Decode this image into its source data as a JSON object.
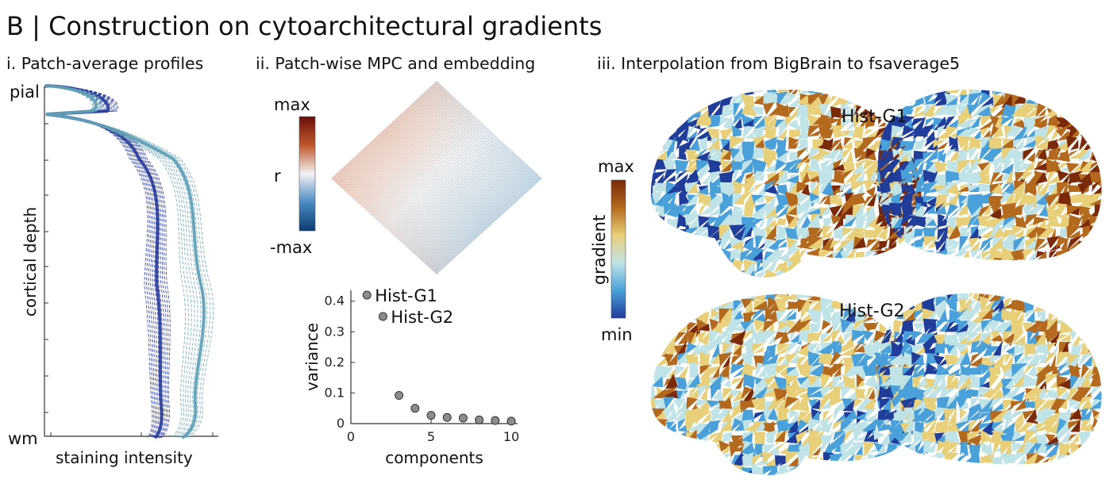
{
  "figure": {
    "title": "B | Construction on cytoarchitectural gradients"
  },
  "panel_i": {
    "title": "i. Patch-average profiles",
    "y_top_label": "pial",
    "y_bottom_label": "wm",
    "y_axis_label": "cortical depth",
    "x_axis_label": "staining intensity"
  },
  "panel_ii": {
    "title": "ii. Patch-wise MPC and embedding",
    "colorbar_max": "max",
    "colorbar_mid": "r",
    "colorbar_min": "-max",
    "colors": {
      "neg": "#0b3a72",
      "mid": "#f2f2f2",
      "pos": "#6b0e0a"
    }
  },
  "panel_iii": {
    "title": "iii. Interpolation from BigBrain to fsaverage5",
    "label_g1": "Hist-G1",
    "label_g2": "Hist-G2",
    "colorbar_max": "max",
    "colorbar_min": "min",
    "colorbar_label": "gradient",
    "colors": [
      "#1f3d99",
      "#4aa0d8",
      "#bfe3e6",
      "#e8cf7a",
      "#b36a1e",
      "#7a2a08"
    ]
  },
  "chart_data": {
    "type": "scatter",
    "xlabel": "components",
    "ylabel": "variance",
    "xlim": [
      0,
      10
    ],
    "ylim": [
      0,
      0.42
    ],
    "xticks": [
      "0",
      "5",
      "10"
    ],
    "yticks": [
      "0",
      "0.1",
      "0.2",
      "0.3",
      "0.4"
    ],
    "grid": false,
    "x": [
      1,
      2,
      3,
      4,
      5,
      6,
      7,
      8,
      9,
      10
    ],
    "y": [
      0.42,
      0.35,
      0.092,
      0.05,
      0.027,
      0.02,
      0.018,
      0.012,
      0.01,
      0.008
    ],
    "annotations": [
      {
        "text": "Hist-G1",
        "x": 1,
        "y": 0.42
      },
      {
        "text": "Hist-G2",
        "x": 2,
        "y": 0.35
      }
    ]
  }
}
